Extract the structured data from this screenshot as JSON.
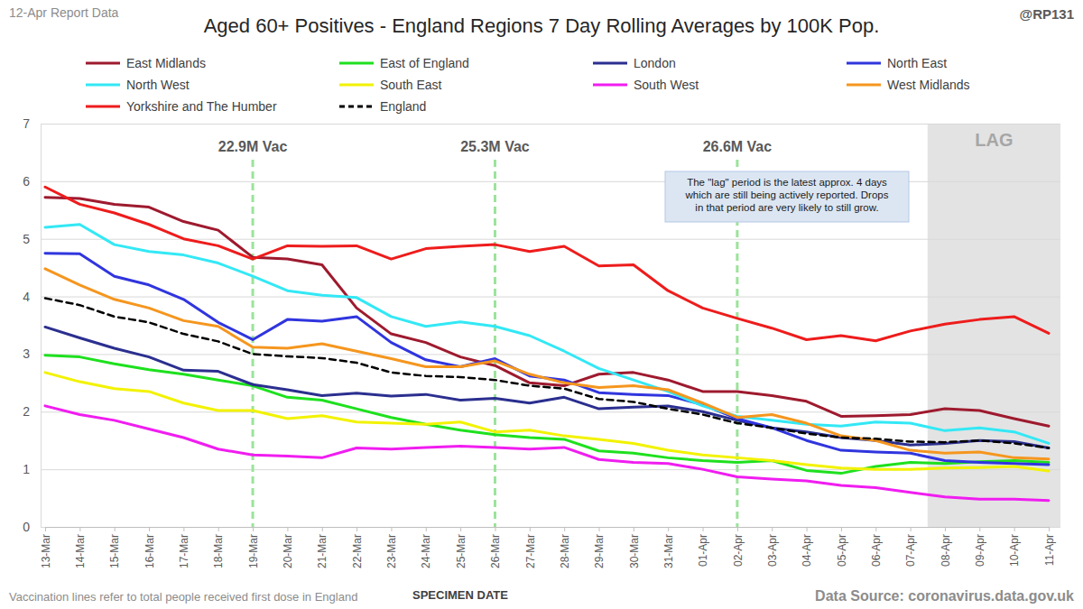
{
  "chart_data": {
    "type": "line",
    "title": "Aged 60+ Positives - England Regions 7 Day Rolling Averages by 100K Pop.",
    "report_label": "12-Apr Report Data",
    "credit": "@RP131",
    "x_label": "SPECIMEN DATE",
    "footnote": "Vaccination lines refer to total people received first dose in England",
    "source": "Data Source: coronavirus.data.gov.uk",
    "categories": [
      "13-Mar",
      "14-Mar",
      "15-Mar",
      "16-Mar",
      "17-Mar",
      "18-Mar",
      "19-Mar",
      "20-Mar",
      "21-Mar",
      "22-Mar",
      "23-Mar",
      "24-Mar",
      "25-Mar",
      "26-Mar",
      "27-Mar",
      "28-Mar",
      "29-Mar",
      "30-Mar",
      "31-Mar",
      "01-Apr",
      "02-Apr",
      "03-Apr",
      "04-Apr",
      "05-Apr",
      "06-Apr",
      "07-Apr",
      "08-Apr",
      "09-Apr",
      "10-Apr",
      "11-Apr"
    ],
    "series": [
      {
        "name": "East Midlands",
        "color": "#9e1a2e",
        "values": [
          5.72,
          5.7,
          5.6,
          5.55,
          5.3,
          5.15,
          4.68,
          4.65,
          4.55,
          3.8,
          3.35,
          3.2,
          2.95,
          2.8,
          2.5,
          2.45,
          2.65,
          2.68,
          2.55,
          2.35,
          2.35,
          2.28,
          2.18,
          1.92,
          1.93,
          1.95,
          2.05,
          2.02,
          1.88,
          1.75
        ]
      },
      {
        "name": "East of England",
        "color": "#1ee01e",
        "values": [
          2.98,
          2.95,
          2.83,
          2.73,
          2.65,
          2.55,
          2.45,
          2.25,
          2.2,
          2.05,
          1.9,
          1.78,
          1.68,
          1.6,
          1.55,
          1.52,
          1.32,
          1.28,
          1.2,
          1.15,
          1.12,
          1.15,
          0.98,
          0.93,
          1.05,
          1.12,
          1.1,
          1.13,
          1.15,
          1.12
        ]
      },
      {
        "name": "London",
        "color": "#2b2f8f",
        "values": [
          3.47,
          3.28,
          3.1,
          2.95,
          2.72,
          2.7,
          2.47,
          2.38,
          2.28,
          2.32,
          2.27,
          2.3,
          2.2,
          2.23,
          2.15,
          2.25,
          2.05,
          2.08,
          2.1,
          2.0,
          1.85,
          1.72,
          1.65,
          1.55,
          1.5,
          1.42,
          1.45,
          1.5,
          1.48,
          1.37
        ]
      },
      {
        "name": "North East",
        "color": "#3035de",
        "values": [
          4.75,
          4.74,
          4.35,
          4.2,
          3.95,
          3.55,
          3.25,
          3.6,
          3.57,
          3.65,
          3.2,
          2.9,
          2.78,
          2.92,
          2.62,
          2.55,
          2.33,
          2.3,
          2.28,
          2.12,
          1.88,
          1.72,
          1.5,
          1.33,
          1.3,
          1.28,
          1.15,
          1.12,
          1.1,
          1.08
        ]
      },
      {
        "name": "North West",
        "color": "#33e8f5",
        "values": [
          5.2,
          5.25,
          4.9,
          4.78,
          4.72,
          4.58,
          4.35,
          4.1,
          4.02,
          3.98,
          3.65,
          3.48,
          3.56,
          3.48,
          3.32,
          3.05,
          2.75,
          2.55,
          2.35,
          2.1,
          1.92,
          1.85,
          1.78,
          1.75,
          1.82,
          1.8,
          1.67,
          1.72,
          1.65,
          1.45
        ]
      },
      {
        "name": "South East",
        "color": "#f2f200",
        "values": [
          2.68,
          2.52,
          2.4,
          2.35,
          2.15,
          2.02,
          2.02,
          1.88,
          1.93,
          1.82,
          1.8,
          1.78,
          1.82,
          1.65,
          1.68,
          1.58,
          1.52,
          1.45,
          1.33,
          1.25,
          1.2,
          1.15,
          1.08,
          1.02,
          1.0,
          1.0,
          1.02,
          1.03,
          1.05,
          0.97
        ]
      },
      {
        "name": "South West",
        "color": "#f01df0",
        "values": [
          2.1,
          1.95,
          1.85,
          1.7,
          1.55,
          1.35,
          1.25,
          1.23,
          1.2,
          1.37,
          1.35,
          1.38,
          1.4,
          1.38,
          1.35,
          1.38,
          1.17,
          1.12,
          1.1,
          1.0,
          0.87,
          0.83,
          0.8,
          0.72,
          0.68,
          0.6,
          0.52,
          0.48,
          0.48,
          0.46
        ]
      },
      {
        "name": "West Midlands",
        "color": "#f5961e",
        "values": [
          4.48,
          4.2,
          3.95,
          3.8,
          3.58,
          3.48,
          3.12,
          3.1,
          3.18,
          3.05,
          2.92,
          2.78,
          2.78,
          2.88,
          2.65,
          2.5,
          2.42,
          2.45,
          2.38,
          2.15,
          1.9,
          1.95,
          1.8,
          1.58,
          1.5,
          1.33,
          1.28,
          1.3,
          1.2,
          1.18
        ]
      },
      {
        "name": "Yorkshire and The Humber",
        "color": "#ee1c1c",
        "values": [
          5.9,
          5.6,
          5.45,
          5.25,
          5.0,
          4.88,
          4.65,
          4.88,
          4.87,
          4.88,
          4.65,
          4.83,
          4.87,
          4.9,
          4.78,
          4.87,
          4.53,
          4.55,
          4.1,
          3.8,
          3.62,
          3.45,
          3.25,
          3.32,
          3.23,
          3.4,
          3.52,
          3.6,
          3.65,
          3.36
        ]
      },
      {
        "name": "England",
        "color": "#000000",
        "line_style": "dashed",
        "values": [
          3.97,
          3.85,
          3.65,
          3.55,
          3.35,
          3.22,
          3.0,
          2.96,
          2.93,
          2.85,
          2.68,
          2.62,
          2.6,
          2.55,
          2.45,
          2.4,
          2.22,
          2.17,
          2.05,
          1.95,
          1.8,
          1.72,
          1.62,
          1.55,
          1.53,
          1.48,
          1.47,
          1.5,
          1.45,
          1.37
        ]
      }
    ],
    "ylim": [
      0,
      7
    ],
    "yticks": [
      0,
      1,
      2,
      3,
      4,
      5,
      6,
      7
    ],
    "grid": true,
    "legend": "top",
    "annotations": {
      "vaccination_lines": [
        {
          "x": "19-Mar",
          "text": "22.9M Vac"
        },
        {
          "x": "26-Mar",
          "text": "25.3M Vac"
        },
        {
          "x": "02-Apr",
          "text": "26.6M Vac"
        }
      ],
      "lag": {
        "x": "08-Apr",
        "text": "LAG"
      },
      "note": [
        "The \"lag\" period is the latest approx. 4 days",
        "which are still being actively reported. Drops",
        "in that period are very likely to still grow."
      ]
    }
  }
}
